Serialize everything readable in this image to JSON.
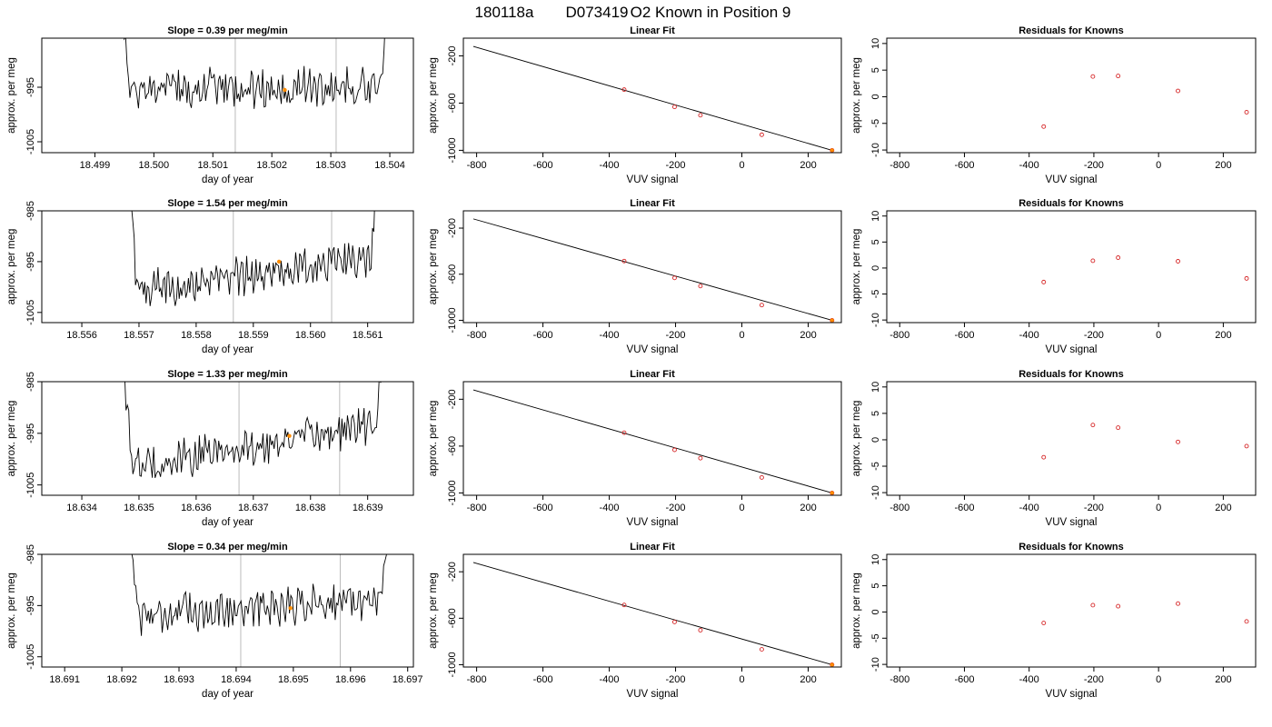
{
  "figure": {
    "title_parts": [
      "180118a",
      "D073419",
      "O2 Known in Position  9"
    ]
  },
  "colors": {
    "trace": "#000000",
    "fit_line": "#000000",
    "known_points": "#d62728",
    "highlight_point": "#ff8c00",
    "marker_lines": "#bbbbbb"
  },
  "chart_data": [
    {
      "type": "line",
      "row": 0,
      "panel": "timeseries",
      "title": "Slope =  0.39  per meg/min",
      "xlabel": "day of year",
      "ylabel": "approx. per meg",
      "xlim": [
        18.4981,
        18.5044
      ],
      "ylim": [
        -1007,
        -986
      ],
      "xticks": [
        "18.499",
        "18.500",
        "18.501",
        "18.502",
        "18.503",
        "18.504"
      ],
      "yticks": [
        "-995",
        "-1005"
      ],
      "ytick_values": [
        -995,
        -1005
      ],
      "data_start": 18.4994,
      "data_end": 18.504,
      "baseline_start": -995.5,
      "baseline_end": -995.0,
      "vlines": [
        18.50138,
        18.50309
      ],
      "highlight": {
        "x": 18.50222,
        "y": -995.5
      }
    },
    {
      "type": "scatter",
      "row": 0,
      "panel": "fit",
      "title": "Linear Fit",
      "xlabel": "VUV signal",
      "ylabel": "approx. per meg",
      "xlim": [
        -840,
        300
      ],
      "ylim": [
        -1020,
        -50
      ],
      "xticks": [
        "-800",
        "-600",
        "-400",
        "-200",
        "0",
        "200"
      ],
      "yticks": [
        "-200",
        "-600",
        "-1000"
      ],
      "ytick_values": [
        -200,
        -600,
        -1000
      ],
      "x": [
        -355,
        -203,
        -125,
        60,
        272
      ],
      "y": [
        -486,
        -632,
        -703,
        -868,
        -1000
      ],
      "line": {
        "x": [
          -810,
          272
        ],
        "y": [
          -120,
          -1000
        ]
      }
    },
    {
      "type": "scatter",
      "row": 0,
      "panel": "residuals",
      "title": "Residuals for Knowns",
      "xlabel": "VUV signal",
      "ylabel": "approx. per meg",
      "xlim": [
        -840,
        300
      ],
      "ylim": [
        -10.5,
        11
      ],
      "xticks": [
        "-800",
        "-600",
        "-400",
        "-200",
        "0",
        "200"
      ],
      "yticks": [
        "10",
        "5",
        "0",
        "-5",
        "-10"
      ],
      "ytick_values": [
        10,
        5,
        0,
        -5,
        -10
      ],
      "x": [
        -355,
        -203,
        -125,
        60,
        272
      ],
      "y": [
        -5.6,
        3.8,
        3.9,
        1.1,
        -2.9
      ]
    },
    {
      "type": "line",
      "row": 1,
      "panel": "timeseries",
      "title": "Slope =  1.54  per meg/min",
      "xlabel": "day of year",
      "ylabel": "approx. per meg",
      "xlim": [
        18.5553,
        18.5618
      ],
      "ylim": [
        -1007,
        -985
      ],
      "xticks": [
        "18.556",
        "18.557",
        "18.558",
        "18.559",
        "18.560",
        "18.561"
      ],
      "yticks": [
        "-985",
        "-995",
        "-1005"
      ],
      "ytick_values": [
        -985,
        -995,
        -1005
      ],
      "data_start": 18.5568,
      "data_end": 18.5612,
      "baseline_start": -1001.0,
      "baseline_end": -994.0,
      "vlines": [
        18.55865,
        18.56037
      ],
      "highlight": {
        "x": 18.55945,
        "y": -995.0
      }
    },
    {
      "type": "scatter",
      "row": 1,
      "panel": "fit",
      "title": "Linear Fit",
      "xlabel": "VUV signal",
      "ylabel": "approx. per meg",
      "xlim": [
        -840,
        300
      ],
      "ylim": [
        -1020,
        -50
      ],
      "xticks": [
        "-800",
        "-600",
        "-400",
        "-200",
        "0",
        "200"
      ],
      "yticks": [
        "-200",
        "-600",
        "-1000"
      ],
      "ytick_values": [
        -200,
        -600,
        -1000
      ],
      "x": [
        -355,
        -203,
        -125,
        60,
        272
      ],
      "y": [
        -486,
        -632,
        -703,
        -868,
        -1000
      ],
      "line": {
        "x": [
          -810,
          272
        ],
        "y": [
          -120,
          -1000
        ]
      }
    },
    {
      "type": "scatter",
      "row": 1,
      "panel": "residuals",
      "title": "Residuals for Knowns",
      "xlabel": "VUV signal",
      "ylabel": "approx. per meg",
      "xlim": [
        -840,
        300
      ],
      "ylim": [
        -10.5,
        11
      ],
      "xticks": [
        "-800",
        "-600",
        "-400",
        "-200",
        "0",
        "200"
      ],
      "yticks": [
        "10",
        "5",
        "0",
        "-5",
        "-10"
      ],
      "ytick_values": [
        10,
        5,
        0,
        -5,
        -10
      ],
      "x": [
        -355,
        -203,
        -125,
        60,
        272
      ],
      "y": [
        -2.7,
        1.4,
        2.0,
        1.3,
        -2.0
      ]
    },
    {
      "type": "line",
      "row": 2,
      "panel": "timeseries",
      "title": "Slope =  1.33  per meg/min",
      "xlabel": "day of year",
      "ylabel": "approx. per meg",
      "xlim": [
        18.6333,
        18.6398
      ],
      "ylim": [
        -1007,
        -985
      ],
      "xticks": [
        "18.634",
        "18.635",
        "18.636",
        "18.637",
        "18.638",
        "18.639"
      ],
      "yticks": [
        "-985",
        "-995",
        "-1005"
      ],
      "ytick_values": [
        -985,
        -995,
        -1005
      ],
      "data_start": 18.6347,
      "data_end": 18.6393,
      "baseline_start": -1002.0,
      "baseline_end": -993.0,
      "vlines": [
        18.63675,
        18.63851
      ],
      "highlight": {
        "x": 18.63763,
        "y": -995.5
      }
    },
    {
      "type": "scatter",
      "row": 2,
      "panel": "fit",
      "title": "Linear Fit",
      "xlabel": "VUV signal",
      "ylabel": "approx. per meg",
      "xlim": [
        -840,
        300
      ],
      "ylim": [
        -1020,
        -50
      ],
      "xticks": [
        "-800",
        "-600",
        "-400",
        "-200",
        "0",
        "200"
      ],
      "yticks": [
        "-200",
        "-600",
        "-1000"
      ],
      "ytick_values": [
        -200,
        -600,
        -1000
      ],
      "x": [
        -355,
        -203,
        -125,
        60,
        272
      ],
      "y": [
        -486,
        -632,
        -703,
        -868,
        -1000
      ],
      "line": {
        "x": [
          -810,
          272
        ],
        "y": [
          -120,
          -1000
        ]
      }
    },
    {
      "type": "scatter",
      "row": 2,
      "panel": "residuals",
      "title": "Residuals for Knowns",
      "xlabel": "VUV signal",
      "ylabel": "approx. per meg",
      "xlim": [
        -840,
        300
      ],
      "ylim": [
        -10.5,
        11
      ],
      "xticks": [
        "-800",
        "-600",
        "-400",
        "-200",
        "0",
        "200"
      ],
      "yticks": [
        "10",
        "5",
        "0",
        "-5",
        "-10"
      ],
      "ytick_values": [
        10,
        5,
        0,
        -5,
        -10
      ],
      "x": [
        -355,
        -203,
        -125,
        60,
        272
      ],
      "y": [
        -3.3,
        2.8,
        2.3,
        -0.4,
        -1.2
      ]
    },
    {
      "type": "line",
      "row": 3,
      "panel": "timeseries",
      "title": "Slope =  0.34  per meg/min",
      "xlabel": "day of year",
      "ylabel": "approx. per meg",
      "xlim": [
        18.6906,
        18.6971
      ],
      "ylim": [
        -1007,
        -985
      ],
      "xticks": [
        "18.691",
        "18.692",
        "18.693",
        "18.694",
        "18.695",
        "18.696",
        "18.697"
      ],
      "yticks": [
        "-985",
        "-995",
        "-1005"
      ],
      "ytick_values": [
        -985,
        -995,
        -1005
      ],
      "data_start": 18.6921,
      "data_end": 18.6967,
      "baseline_start": -997.0,
      "baseline_end": -993.5,
      "vlines": [
        18.69408,
        18.69582
      ],
      "highlight": {
        "x": 18.69495,
        "y": -995.5
      }
    },
    {
      "type": "scatter",
      "row": 3,
      "panel": "fit",
      "title": "Linear Fit",
      "xlabel": "VUV signal",
      "ylabel": "approx. per meg",
      "xlim": [
        -840,
        300
      ],
      "ylim": [
        -1020,
        -50
      ],
      "xticks": [
        "-800",
        "-600",
        "-400",
        "-200",
        "0",
        "200"
      ],
      "yticks": [
        "-200",
        "-600",
        "-1000"
      ],
      "ytick_values": [
        -200,
        -600,
        -1000
      ],
      "x": [
        -355,
        -203,
        -125,
        60,
        272
      ],
      "y": [
        -486,
        -632,
        -703,
        -868,
        -1000
      ],
      "line": {
        "x": [
          -810,
          272
        ],
        "y": [
          -120,
          -1000
        ]
      }
    },
    {
      "type": "scatter",
      "row": 3,
      "panel": "residuals",
      "title": "Residuals for Knowns",
      "xlabel": "VUV signal",
      "ylabel": "approx. per meg",
      "xlim": [
        -840,
        300
      ],
      "ylim": [
        -10.5,
        11
      ],
      "xticks": [
        "-800",
        "-600",
        "-400",
        "-200",
        "0",
        "200"
      ],
      "yticks": [
        "10",
        "5",
        "0",
        "-5",
        "-10"
      ],
      "ytick_values": [
        10,
        5,
        0,
        -5,
        -10
      ],
      "x": [
        -355,
        -203,
        -125,
        60,
        272
      ],
      "y": [
        -2.1,
        1.3,
        1.1,
        1.6,
        -1.8
      ]
    }
  ]
}
